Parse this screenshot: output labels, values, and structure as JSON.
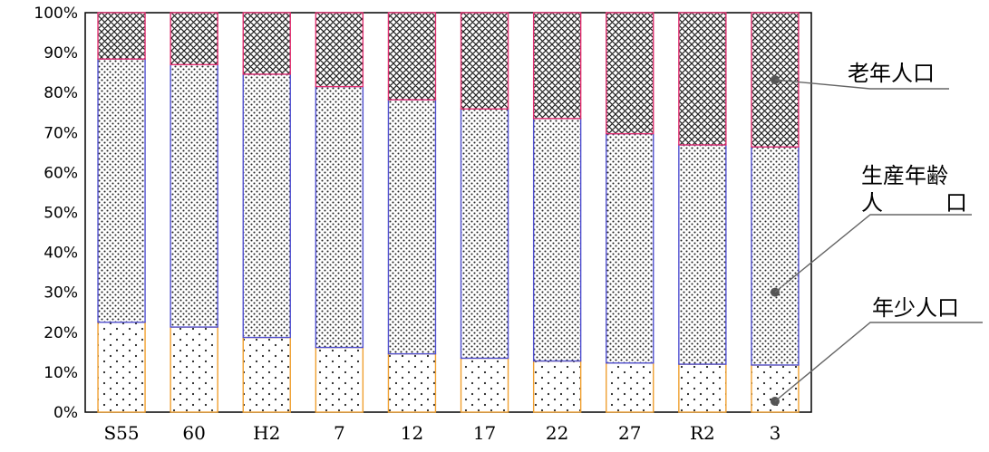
{
  "chart_data": {
    "type": "bar",
    "stacked": true,
    "percent_stacked": true,
    "categories": [
      "S55",
      "60",
      "H2",
      "7",
      "12",
      "17",
      "22",
      "27",
      "R2",
      "3"
    ],
    "series": [
      {
        "name": "年少人口",
        "values": [
          22.5,
          21.3,
          18.7,
          16.2,
          14.6,
          13.5,
          12.8,
          12.3,
          12.0,
          11.8
        ],
        "color": "#f0a030",
        "pattern": "sparse-dots"
      },
      {
        "name": "生産年齢人口",
        "values": [
          65.9,
          65.7,
          65.9,
          65.3,
          63.6,
          62.4,
          60.7,
          57.4,
          54.9,
          54.6
        ],
        "color": "#5050d0",
        "pattern": "dense-dots"
      },
      {
        "name": "老年人口",
        "values": [
          11.6,
          13.0,
          15.4,
          18.5,
          21.8,
          24.1,
          26.5,
          30.3,
          33.1,
          33.6
        ],
        "color": "#e03070",
        "pattern": "crosshatch"
      }
    ],
    "y_ticks": [
      "0%",
      "10%",
      "20%",
      "30%",
      "40%",
      "50%",
      "60%",
      "70%",
      "80%",
      "90%",
      "100%"
    ],
    "ylim": [
      0,
      100
    ],
    "grid": false,
    "legend_labels": {
      "elderly": "老年人口",
      "working_line1": "生産年齢",
      "working_line2_left": "人",
      "working_line2_right": "口",
      "youth": "年少人口"
    },
    "legend_placement": "right"
  }
}
